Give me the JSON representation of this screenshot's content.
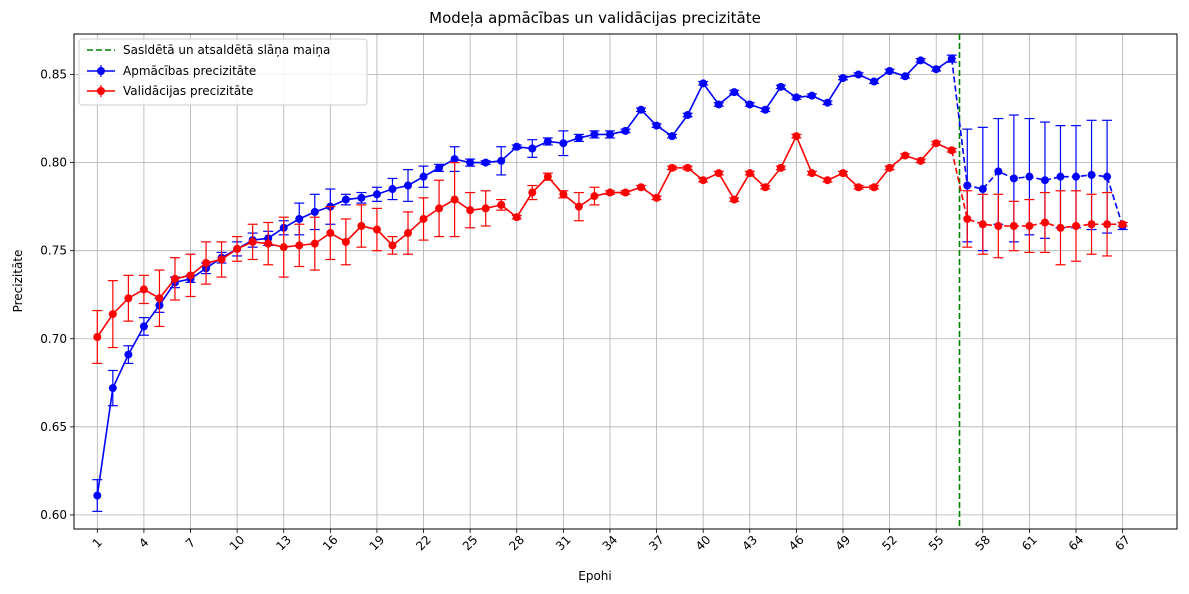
{
  "chart_data": {
    "type": "line",
    "title": "Modeļa apmācības un validācijas precizitāte",
    "xlabel": "Epohi",
    "ylabel": "Precizitāte",
    "xlim": [
      -0.5,
      70.5
    ],
    "ylim": [
      0.592,
      0.873
    ],
    "x_ticks": [
      1,
      4,
      7,
      10,
      13,
      16,
      19,
      22,
      25,
      28,
      31,
      34,
      37,
      40,
      43,
      46,
      49,
      52,
      55,
      58,
      61,
      64,
      67
    ],
    "y_ticks": [
      0.6,
      0.65,
      0.7,
      0.75,
      0.8,
      0.85
    ],
    "y_tick_labels": [
      "0.60",
      "0.65",
      "0.70",
      "0.75",
      "0.80",
      "0.85"
    ],
    "grid": true,
    "legend_position": "top-left",
    "vline": {
      "x": 56.5,
      "label": "Sasldētā un atsaldētā slāņa maiņa",
      "color": "#008000"
    },
    "split_after_epoch": 56,
    "series": [
      {
        "name": "Apmācības precizitāte",
        "color": "#0000ff",
        "x": [
          1,
          2,
          3,
          4,
          5,
          6,
          7,
          8,
          9,
          10,
          11,
          12,
          13,
          14,
          15,
          16,
          17,
          18,
          19,
          20,
          21,
          22,
          23,
          24,
          25,
          26,
          27,
          28,
          29,
          30,
          31,
          32,
          33,
          34,
          35,
          36,
          37,
          38,
          39,
          40,
          41,
          42,
          43,
          44,
          45,
          46,
          47,
          48,
          49,
          50,
          51,
          52,
          53,
          54,
          55,
          56,
          57,
          58,
          59,
          60,
          61,
          62,
          63,
          64,
          65,
          66,
          67
        ],
        "values": [
          0.611,
          0.672,
          0.691,
          0.707,
          0.719,
          0.732,
          0.734,
          0.74,
          0.746,
          0.751,
          0.756,
          0.757,
          0.763,
          0.768,
          0.772,
          0.775,
          0.779,
          0.78,
          0.782,
          0.785,
          0.787,
          0.792,
          0.797,
          0.802,
          0.8,
          0.8,
          0.801,
          0.809,
          0.808,
          0.812,
          0.811,
          0.814,
          0.816,
          0.816,
          0.818,
          0.83,
          0.821,
          0.815,
          0.827,
          0.845,
          0.833,
          0.84,
          0.833,
          0.83,
          0.843,
          0.837,
          0.838,
          0.834,
          0.848,
          0.85,
          0.846,
          0.852,
          0.849,
          0.858,
          0.853,
          0.859,
          0.787,
          0.785,
          0.795,
          0.791,
          0.792,
          0.79,
          0.792,
          0.792,
          0.793,
          0.792,
          0.764
        ],
        "errors": [
          0.009,
          0.01,
          0.005,
          0.005,
          0.004,
          0.003,
          0.002,
          0.003,
          0.003,
          0.004,
          0.004,
          0.004,
          0.004,
          0.009,
          0.01,
          0.01,
          0.003,
          0.003,
          0.004,
          0.006,
          0.009,
          0.006,
          0.002,
          0.007,
          0.002,
          0.001,
          0.008,
          0.001,
          0.005,
          0.002,
          0.007,
          0.002,
          0.002,
          0.002,
          0.001,
          0.001,
          0.001,
          0.001,
          0.001,
          0.001,
          0.001,
          0.001,
          0.001,
          0.001,
          0.001,
          0.001,
          0.001,
          0.001,
          0.001,
          0.001,
          0.001,
          0.001,
          0.001,
          0.001,
          0.001,
          0.002,
          0.032,
          0.035,
          0.03,
          0.036,
          0.033,
          0.033,
          0.029,
          0.029,
          0.031,
          0.032,
          0.002
        ]
      },
      {
        "name": "Validācijas precizitāte",
        "color": "#ff0000",
        "x": [
          1,
          2,
          3,
          4,
          5,
          6,
          7,
          8,
          9,
          10,
          11,
          12,
          13,
          14,
          15,
          16,
          17,
          18,
          19,
          20,
          21,
          22,
          23,
          24,
          25,
          26,
          27,
          28,
          29,
          30,
          31,
          32,
          33,
          34,
          35,
          36,
          37,
          38,
          39,
          40,
          41,
          42,
          43,
          44,
          45,
          46,
          47,
          48,
          49,
          50,
          51,
          52,
          53,
          54,
          55,
          56,
          57,
          58,
          59,
          60,
          61,
          62,
          63,
          64,
          65,
          66,
          67
        ],
        "values": [
          0.701,
          0.714,
          0.723,
          0.728,
          0.723,
          0.734,
          0.736,
          0.743,
          0.745,
          0.751,
          0.755,
          0.754,
          0.752,
          0.753,
          0.754,
          0.76,
          0.755,
          0.764,
          0.762,
          0.753,
          0.76,
          0.768,
          0.774,
          0.779,
          0.773,
          0.774,
          0.776,
          0.769,
          0.783,
          0.792,
          0.782,
          0.775,
          0.781,
          0.783,
          0.783,
          0.786,
          0.78,
          0.797,
          0.797,
          0.79,
          0.794,
          0.779,
          0.794,
          0.786,
          0.797,
          0.815,
          0.794,
          0.79,
          0.794,
          0.786,
          0.786,
          0.797,
          0.804,
          0.801,
          0.811,
          0.807,
          0.768,
          0.765,
          0.764,
          0.764,
          0.764,
          0.766,
          0.763,
          0.764,
          0.765,
          0.765,
          0.765
        ],
        "errors": [
          0.015,
          0.019,
          0.013,
          0.008,
          0.016,
          0.012,
          0.012,
          0.012,
          0.01,
          0.007,
          0.01,
          0.012,
          0.017,
          0.012,
          0.015,
          0.015,
          0.013,
          0.012,
          0.012,
          0.005,
          0.012,
          0.012,
          0.016,
          0.021,
          0.01,
          0.01,
          0.003,
          0.001,
          0.004,
          0.002,
          0.002,
          0.008,
          0.005,
          0.001,
          0.001,
          0.001,
          0.001,
          0.001,
          0.001,
          0.001,
          0.001,
          0.001,
          0.001,
          0.001,
          0.001,
          0.001,
          0.001,
          0.001,
          0.001,
          0.001,
          0.001,
          0.001,
          0.001,
          0.001,
          0.001,
          0.001,
          0.016,
          0.017,
          0.018,
          0.014,
          0.015,
          0.017,
          0.021,
          0.02,
          0.017,
          0.018,
          0.001
        ]
      }
    ]
  }
}
